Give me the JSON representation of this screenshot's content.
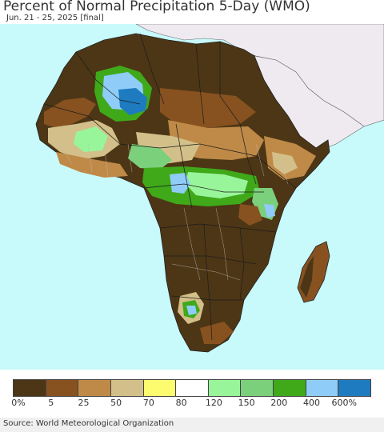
{
  "title": "Percent of Normal Precipitation 5-Day (WMO)",
  "subtitle": "Jun. 21 - 25, 2025 [final]",
  "source": "Source: World Meteorological Organization",
  "legend": {
    "colors": [
      "#4d3615",
      "#875220",
      "#bf8a47",
      "#d3bf89",
      "#fdfc6f",
      "#ffffff",
      "#99f59a",
      "#7bd07b",
      "#3fa91a",
      "#8fcdf8",
      "#1e7bbf"
    ],
    "tick_labels": [
      "0%",
      "5",
      "25",
      "50",
      "70",
      "80",
      "120",
      "150",
      "200",
      "400",
      "600%"
    ]
  },
  "map_colors": {
    "ocean": "#c8fafc",
    "no_data_land": "#efeaf0",
    "border": "#2a2a2a",
    "inner_border": "#c9c9c9"
  }
}
